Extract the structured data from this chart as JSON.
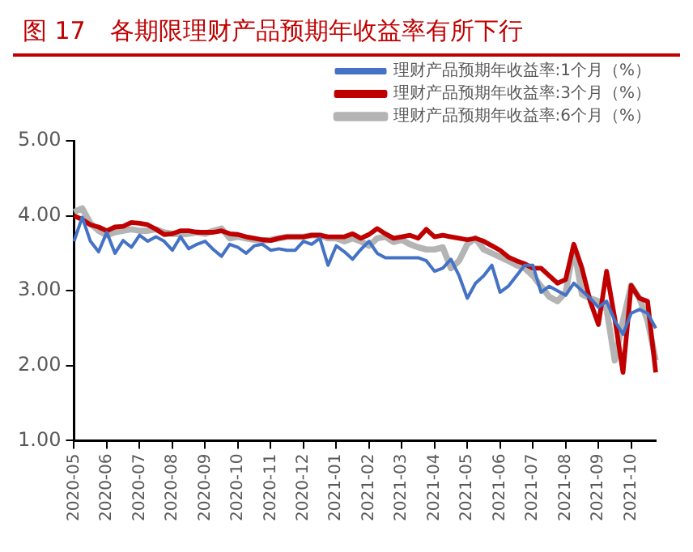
{
  "chart_data": {
    "type": "line",
    "title": "图 17　各期限理财产品预期年收益率有所下行",
    "categories": [
      "2020-05",
      null,
      null,
      null,
      "2020-06",
      null,
      null,
      null,
      "2020-07",
      null,
      null,
      null,
      "2020-08",
      null,
      null,
      null,
      "2020-09",
      null,
      null,
      null,
      "2020-10",
      null,
      null,
      null,
      "2020-11",
      null,
      null,
      null,
      "2020-12",
      null,
      null,
      null,
      "2021-01",
      null,
      null,
      null,
      "2021-02",
      null,
      null,
      null,
      "2021-03",
      null,
      null,
      null,
      "2021-04",
      null,
      null,
      null,
      "2021-05",
      null,
      null,
      null,
      "2021-06",
      null,
      null,
      null,
      "2021-07",
      null,
      null,
      null,
      "2021-08",
      null,
      null,
      null,
      "2021-09",
      null,
      null,
      null,
      "2021-10",
      null,
      null,
      null
    ],
    "series": [
      {
        "name": "理财产品预期年收益率:1个月（%）",
        "color": "#4472c4",
        "values": [
          3.66,
          3.98,
          3.66,
          3.52,
          3.78,
          3.5,
          3.67,
          3.58,
          3.74,
          3.66,
          3.72,
          3.66,
          3.54,
          3.72,
          3.56,
          3.62,
          3.66,
          3.55,
          3.46,
          3.62,
          3.58,
          3.5,
          3.6,
          3.62,
          3.54,
          3.56,
          3.54,
          3.54,
          3.66,
          3.62,
          3.7,
          3.34,
          3.6,
          3.52,
          3.42,
          3.55,
          3.66,
          3.5,
          3.44,
          3.44,
          3.44,
          3.44,
          3.44,
          3.4,
          3.26,
          3.3,
          3.42,
          3.2,
          2.9,
          3.1,
          3.2,
          3.34,
          2.98,
          3.06,
          3.2,
          3.34,
          3.34,
          2.98,
          3.06,
          3.0,
          2.94,
          3.1,
          3.0,
          2.9,
          2.78,
          2.86,
          2.6,
          2.42,
          2.7,
          2.75,
          2.7,
          2.5
        ]
      },
      {
        "name": "理财产品预期年收益率:3个月（%）",
        "color": "#c00000",
        "values": [
          4.0,
          3.95,
          3.88,
          3.85,
          3.8,
          3.85,
          3.86,
          3.91,
          3.9,
          3.88,
          3.82,
          3.75,
          3.76,
          3.8,
          3.8,
          3.78,
          3.78,
          3.78,
          3.8,
          3.76,
          3.75,
          3.72,
          3.7,
          3.68,
          3.67,
          3.7,
          3.72,
          3.72,
          3.72,
          3.74,
          3.74,
          3.72,
          3.72,
          3.72,
          3.76,
          3.7,
          3.75,
          3.83,
          3.76,
          3.7,
          3.72,
          3.74,
          3.7,
          3.82,
          3.72,
          3.74,
          3.72,
          3.7,
          3.68,
          3.7,
          3.66,
          3.6,
          3.54,
          3.45,
          3.4,
          3.36,
          3.3,
          3.3,
          3.2,
          3.1,
          3.15,
          3.62,
          3.3,
          2.86,
          2.55,
          3.26,
          2.63,
          1.91,
          3.07,
          2.9,
          2.86,
          1.91
        ]
      },
      {
        "name": "理财产品预期年收益率:6个月（%）",
        "color": "#b4b4b4",
        "values": [
          4.05,
          4.1,
          3.9,
          3.8,
          3.74,
          3.78,
          3.8,
          3.82,
          3.8,
          3.8,
          3.82,
          3.78,
          3.76,
          3.75,
          3.76,
          3.78,
          3.76,
          3.8,
          3.83,
          3.7,
          3.72,
          3.7,
          3.68,
          3.67,
          3.68,
          3.7,
          3.72,
          3.72,
          3.72,
          3.74,
          3.74,
          3.7,
          3.7,
          3.66,
          3.7,
          3.66,
          3.6,
          3.7,
          3.72,
          3.65,
          3.68,
          3.62,
          3.58,
          3.55,
          3.55,
          3.58,
          3.3,
          3.4,
          3.62,
          3.7,
          3.55,
          3.5,
          3.45,
          3.4,
          3.34,
          3.3,
          3.2,
          3.06,
          2.92,
          2.86,
          2.98,
          3.58,
          2.95,
          2.9,
          2.86,
          2.75,
          2.07,
          2.6,
          3.07,
          2.9,
          2.6,
          2.07
        ]
      }
    ],
    "ylim": [
      1,
      5
    ],
    "yticks": [
      {
        "value": 1,
        "label": "1.00"
      },
      {
        "value": 2,
        "label": "2.00"
      },
      {
        "value": 3,
        "label": "3.00"
      },
      {
        "value": 4,
        "label": "4.00"
      },
      {
        "value": 5,
        "label": "5.00"
      }
    ],
    "grid": false,
    "legend": "top",
    "marker": "none",
    "line_style": "solid"
  }
}
